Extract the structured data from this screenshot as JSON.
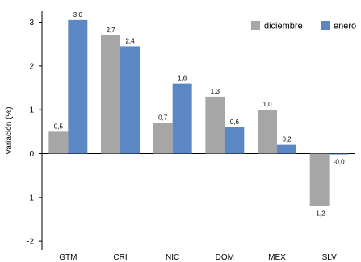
{
  "chart_data": {
    "type": "bar",
    "ylabel": "Variación (%)",
    "categories": [
      "GTM",
      "CRI",
      "NIC",
      "DOM",
      "MEX",
      "SLV"
    ],
    "series": [
      {
        "name": "diciembre",
        "color": "#a6a6a6",
        "values": [
          0.5,
          2.7,
          0.7,
          1.3,
          1.0,
          -1.2
        ],
        "labels": [
          "0,5",
          "2,7",
          "0,7",
          "1,3",
          "1,0",
          "-1,2"
        ]
      },
      {
        "name": "enero",
        "color": "#5b87c5",
        "values": [
          3.05,
          2.45,
          1.6,
          0.6,
          0.2,
          -0.02
        ],
        "labels": [
          "3,0",
          "2,4",
          "1,6",
          "0,6",
          "0,2",
          "-0,0"
        ]
      }
    ],
    "ylim": [
      -2.2,
      3.25
    ],
    "yticks": [
      -2,
      -1,
      0,
      1,
      2,
      3
    ],
    "ytick_labels": [
      "-2",
      "-1",
      "0",
      "1",
      "2",
      "3"
    ],
    "legend_position": "top-right",
    "grid": false
  }
}
